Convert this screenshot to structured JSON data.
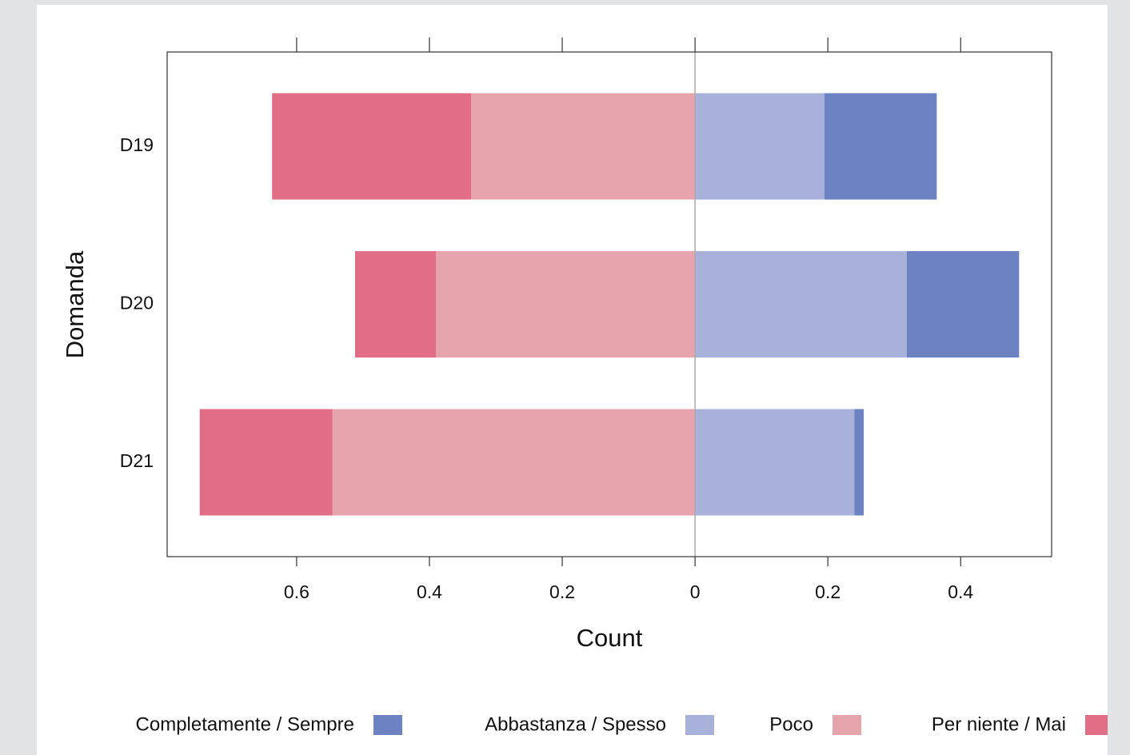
{
  "chart_data": {
    "type": "diverging_bar",
    "xlabel": "Count",
    "ylabel": "Domanda",
    "categories": [
      "D19",
      "D20",
      "D21"
    ],
    "series": [
      {
        "name": "Completamente / Sempre",
        "color": "#6c82c2",
        "values": [
          0.169,
          0.169,
          0.014
        ]
      },
      {
        "name": "Abbastanza / Spesso",
        "color": "#a8b1da",
        "values": [
          0.195,
          0.319,
          0.24
        ]
      },
      {
        "name": "Poco",
        "color": "#e6a5ad",
        "values": [
          -0.337,
          -0.39,
          -0.546
        ]
      },
      {
        "name": "Per niente / Mai",
        "color": "#e26d86",
        "values": [
          -0.3,
          -0.122,
          -0.2
        ]
      }
    ],
    "xlim": [
      -0.795,
      0.537
    ],
    "xticks": [
      {
        "value": -0.6,
        "label": "0.6"
      },
      {
        "value": -0.4,
        "label": "0.4"
      },
      {
        "value": -0.2,
        "label": "0.2"
      },
      0,
      0.2,
      0.4
    ],
    "legend": "bottom"
  }
}
